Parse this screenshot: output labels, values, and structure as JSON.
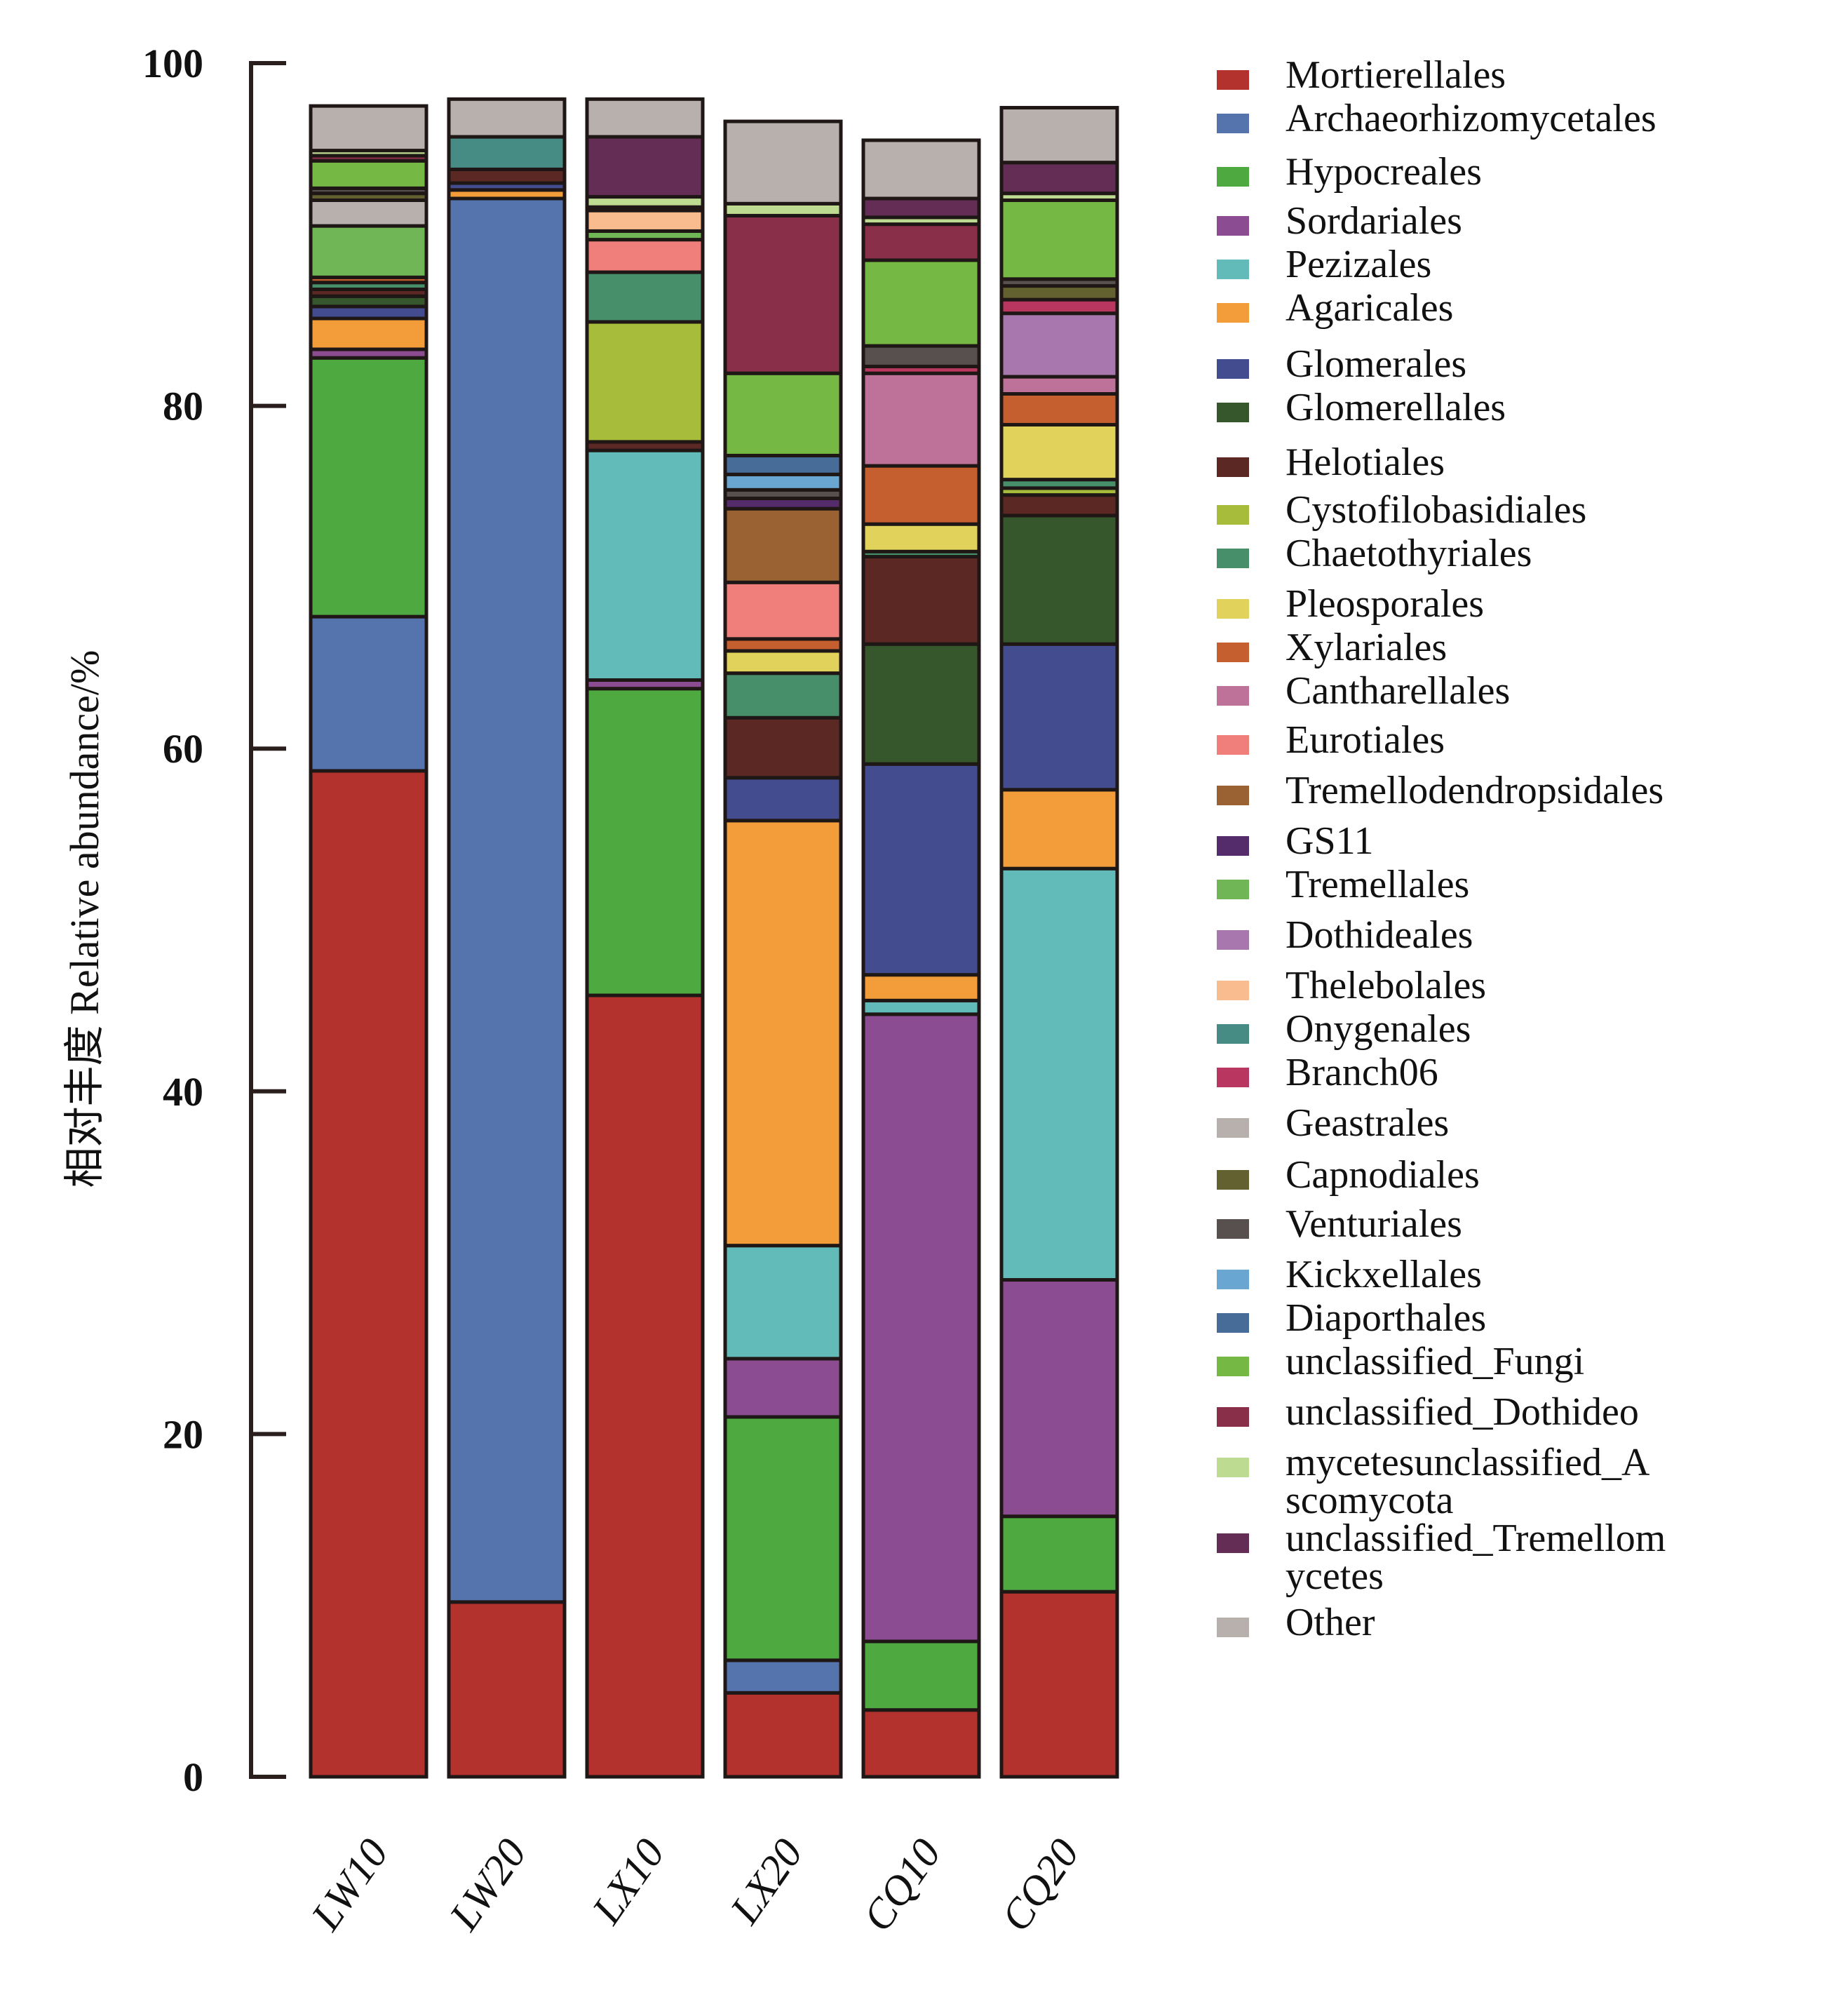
{
  "chart_data": {
    "type": "bar",
    "stacked": true,
    "title": "",
    "xlabel": "",
    "ylabel": "相对丰度 Relative abundance/%",
    "ylim": [
      0,
      100
    ],
    "yticks": [
      0,
      20,
      40,
      60,
      80,
      100
    ],
    "ytick_labels": [
      "0",
      "20",
      "40",
      "60",
      "80",
      "100"
    ],
    "grid": false,
    "legend_position": "right",
    "categories": [
      "LW10",
      "LW20",
      "LX10",
      "LX20",
      "CQ10",
      "CQ20"
    ],
    "series": [
      {
        "name": "Mortierellales",
        "color": "#b3322e",
        "values": [
          58.7,
          10.2,
          45.6,
          4.9,
          3.9,
          10.8
        ]
      },
      {
        "name": "Archaeorhizomycetales",
        "color": "#5574ae",
        "values": [
          9.0,
          81.9,
          0,
          1.9,
          0,
          0
        ]
      },
      {
        "name": "Hypocreales",
        "color": "#4ea940",
        "values": [
          15.1,
          0,
          17.9,
          14.2,
          4.0,
          4.4
        ]
      },
      {
        "name": "Sordariales",
        "color": "#8b4c91",
        "values": [
          0.5,
          0,
          0.5,
          3.4,
          36.6,
          13.8
        ]
      },
      {
        "name": "Pezizales",
        "color": "#62bbb8",
        "values": [
          0,
          0,
          13.4,
          6.6,
          0.8,
          24.0
        ]
      },
      {
        "name": "Agaricales",
        "color": "#f39d3a",
        "values": [
          1.8,
          0.5,
          0,
          24.8,
          1.5,
          4.6
        ]
      },
      {
        "name": "Glomerales",
        "color": "#434c8f",
        "values": [
          0.7,
          0.4,
          0,
          2.5,
          12.3,
          8.5
        ]
      },
      {
        "name": "Glomerellales",
        "color": "#36572c",
        "values": [
          0.6,
          0,
          0,
          0,
          7.0,
          7.5
        ]
      },
      {
        "name": "Helotiales",
        "color": "#5c2824",
        "values": [
          0.4,
          0.8,
          0.5,
          3.5,
          5.1,
          1.2
        ]
      },
      {
        "name": "Cystofilobasidiales",
        "color": "#a8bc3c",
        "values": [
          0,
          0,
          7.0,
          0,
          0,
          0.4
        ]
      },
      {
        "name": "Chaetothyriales",
        "color": "#478f6a",
        "values": [
          0.4,
          0,
          2.9,
          2.6,
          0.3,
          0.5
        ]
      },
      {
        "name": "Pleosporales",
        "color": "#e0d25a",
        "values": [
          0,
          0,
          0,
          1.3,
          1.6,
          3.2
        ]
      },
      {
        "name": "Xylariales",
        "color": "#c55f30",
        "values": [
          0.3,
          0,
          0,
          0.7,
          3.4,
          1.8
        ]
      },
      {
        "name": "Cantharellales",
        "color": "#bf7299",
        "values": [
          0,
          0,
          0,
          0,
          5.4,
          1.0
        ]
      },
      {
        "name": "Eurotiales",
        "color": "#f07f7c",
        "values": [
          0,
          0,
          1.9,
          3.3,
          0,
          0
        ]
      },
      {
        "name": "Tremellodendropsidales",
        "color": "#9a6232",
        "values": [
          0,
          0,
          0,
          4.3,
          0,
          0
        ]
      },
      {
        "name": "GS11",
        "color": "#552c6b",
        "values": [
          0,
          0,
          0,
          0.6,
          0,
          0
        ]
      },
      {
        "name": "Tremellales",
        "color": "#70b657",
        "values": [
          3.0,
          0,
          0.5,
          0,
          0,
          0
        ]
      },
      {
        "name": "Dothideales",
        "color": "#a877ad",
        "values": [
          0,
          0,
          0,
          0,
          0,
          3.7
        ]
      },
      {
        "name": "Thelebolales",
        "color": "#f9bc8e",
        "values": [
          0,
          0,
          1.2,
          0,
          0,
          0
        ]
      },
      {
        "name": "Onygenales",
        "color": "#468c84",
        "values": [
          0,
          1.9,
          0,
          0,
          0,
          0
        ]
      },
      {
        "name": "Branch06",
        "color": "#b93661",
        "values": [
          0,
          0,
          0,
          0,
          0.4,
          0.8
        ]
      },
      {
        "name": "Geastrales",
        "color": "#b8b0ad",
        "values": [
          1.5,
          0,
          0,
          0,
          0,
          0
        ]
      },
      {
        "name": "Capnodiales",
        "color": "#646130",
        "values": [
          0.4,
          0,
          0.2,
          0,
          0,
          0.8
        ]
      },
      {
        "name": "Venturiales",
        "color": "#58504f",
        "values": [
          0.3,
          0,
          0,
          0.5,
          1.2,
          0.4
        ]
      },
      {
        "name": "Kickxellales",
        "color": "#69a7d2",
        "values": [
          0,
          0,
          0,
          0.9,
          0,
          0
        ]
      },
      {
        "name": "Diaporthales",
        "color": "#476c98",
        "values": [
          0,
          0,
          0,
          1.1,
          0,
          0
        ]
      },
      {
        "name": "unclassified_Fungi",
        "color": "#76b844",
        "values": [
          1.6,
          0,
          0,
          4.8,
          5.0,
          4.6
        ]
      },
      {
        "name": "unclassified_Dothideo",
        "color": "#8a2f4a",
        "values": [
          0.3,
          0,
          0,
          9.2,
          2.1,
          0
        ]
      },
      {
        "name": "mycetesunclassified_A scomycota",
        "color": "#bedb92",
        "values": [
          0.3,
          0,
          0.6,
          0.7,
          0.4,
          0.4
        ]
      },
      {
        "name": "unclassified_Tremellom ycetes",
        "color": "#632d56",
        "values": [
          0,
          0,
          3.5,
          0,
          1.1,
          1.8
        ]
      },
      {
        "name": "Other",
        "color": "#b8b0ad",
        "values": [
          2.6,
          2.2,
          2.2,
          4.8,
          3.4,
          3.2
        ]
      }
    ]
  },
  "legend": {
    "items": [
      "Mortierellales",
      "Archaeorhizomycetales",
      "Hypocreales",
      "Sordariales",
      "Pezizales",
      "Agaricales",
      "Glomerales",
      "Glomerellales",
      "Helotiales",
      "Cystofilobasidiales",
      "Chaetothyriales",
      "Pleosporales",
      "Xylariales",
      "Cantharellales",
      "Eurotiales",
      "Tremellodendropsidales",
      "GS11",
      "Tremellales",
      "Dothideales",
      "Thelebolales",
      "Onygenales",
      "Branch06",
      "Geastrales",
      "Capnodiales",
      "Venturiales",
      "Kickxellales",
      "Diaporthales",
      "unclassified_Fungi",
      "unclassified_Dothideo",
      "mycetesunclassified_A scomycota",
      "unclassified_Tremellom ycetes",
      "Other"
    ]
  }
}
